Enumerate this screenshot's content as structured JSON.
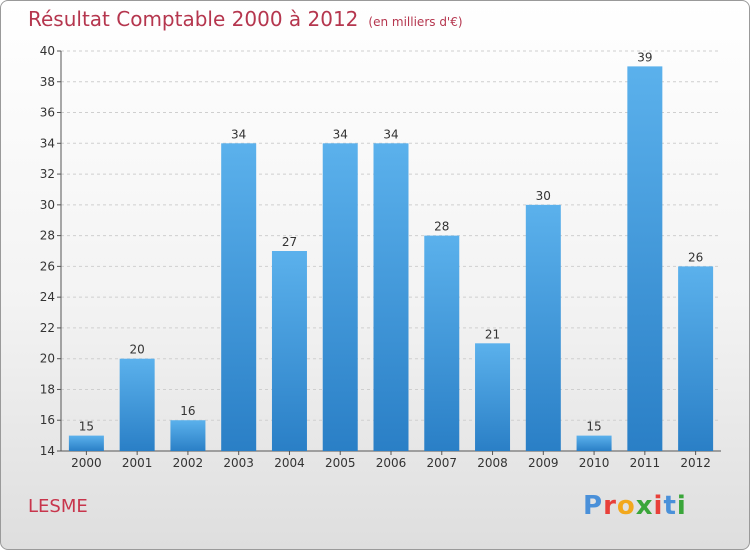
{
  "chart_data": {
    "type": "bar",
    "title": "Résultat Comptable 2000 à 2012",
    "subtitle": "(en milliers d'€)",
    "categories": [
      "2000",
      "2001",
      "2002",
      "2003",
      "2004",
      "2005",
      "2006",
      "2007",
      "2008",
      "2009",
      "2010",
      "2011",
      "2012"
    ],
    "values": [
      15,
      20,
      16,
      34,
      27,
      34,
      34,
      28,
      21,
      30,
      15,
      39,
      26
    ],
    "ylim": [
      14,
      40
    ],
    "yticks": [
      14,
      16,
      18,
      20,
      22,
      24,
      26,
      28,
      30,
      32,
      34,
      36,
      38,
      40
    ],
    "grid": true,
    "bar_color": "#4a9fe0"
  },
  "commune": "LESME",
  "logo": {
    "text": "Proxiti",
    "colors": [
      "#4a90d9",
      "#e8403a",
      "#f2a81d",
      "#3aa63a",
      "#e8403a",
      "#4a90d9",
      "#3aa63a"
    ]
  }
}
